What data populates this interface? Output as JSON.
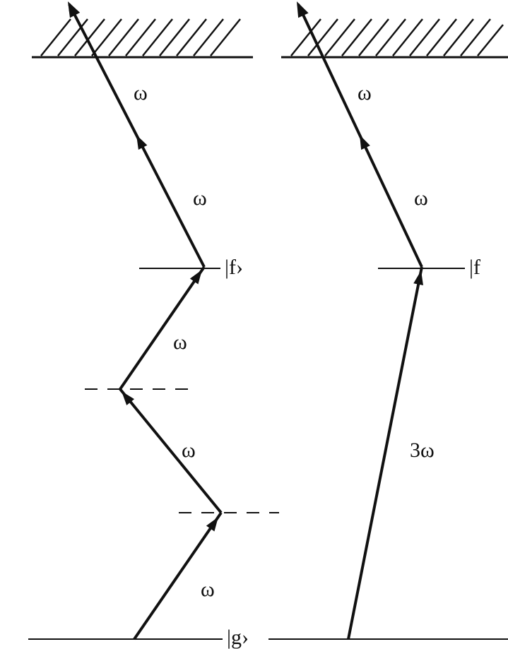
{
  "colors": {
    "ink": "#111111",
    "background": "#ffffff"
  },
  "left_path": {
    "state_f_label": "|f›",
    "state_g_label": "|g›",
    "photon_labels": [
      "ω",
      "ω",
      "ω",
      "ω",
      "ω"
    ]
  },
  "right_path": {
    "state_f_label": "|f",
    "photon_labels": [
      "3ω",
      "ω",
      "ω"
    ]
  }
}
